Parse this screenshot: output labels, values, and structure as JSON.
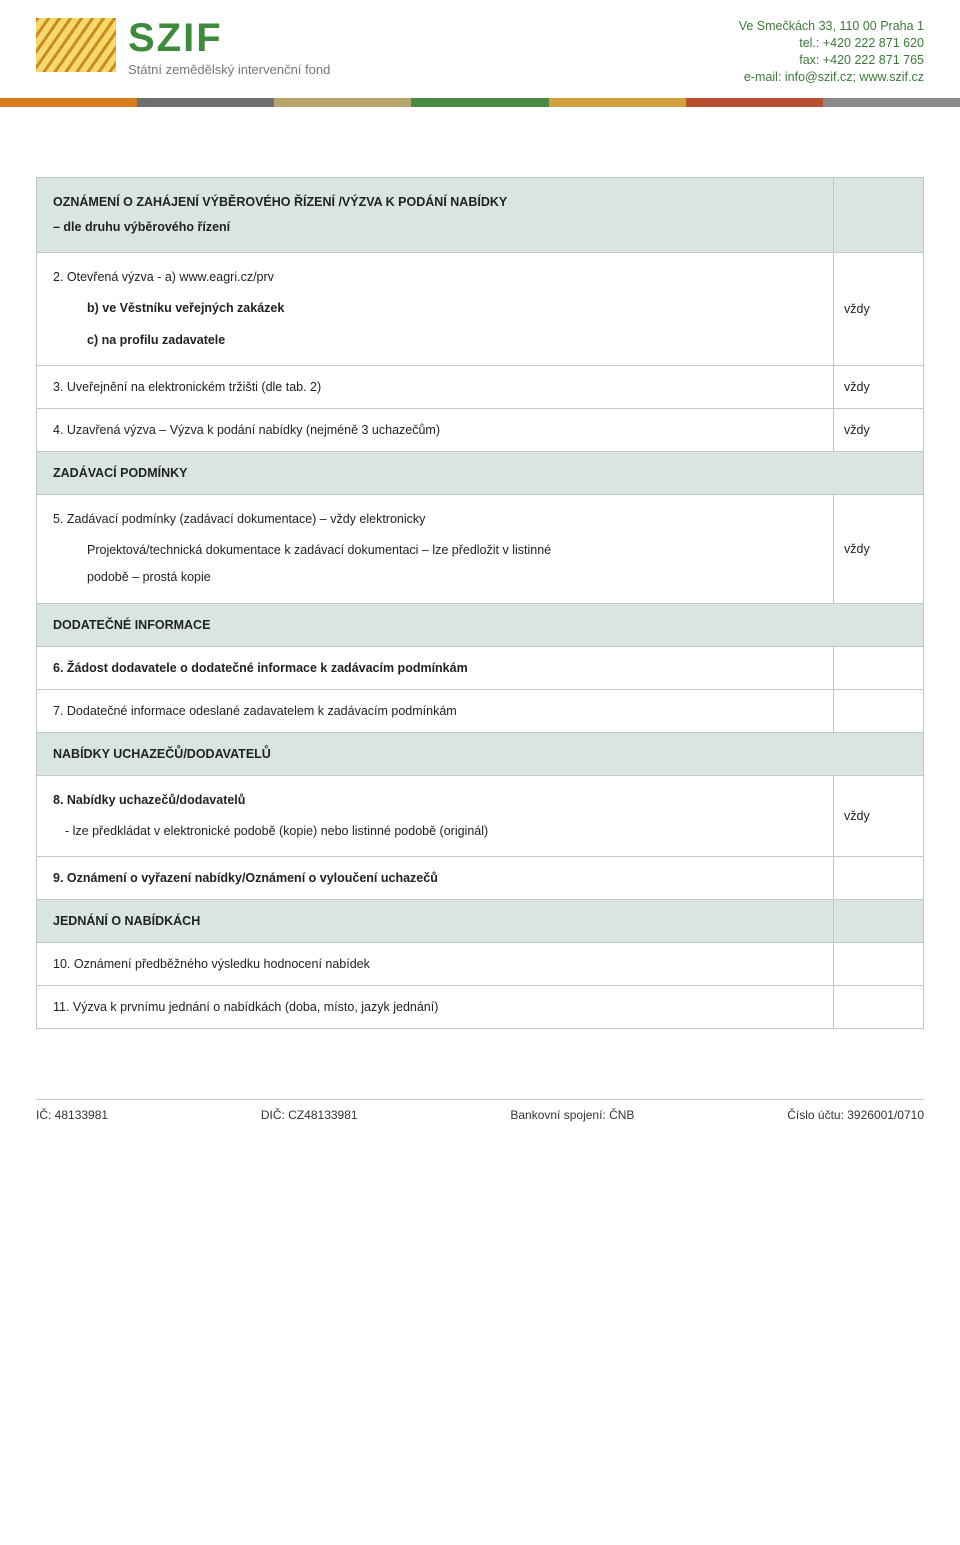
{
  "header": {
    "logo_name": "SZIF",
    "logo_sub": "Státní zemědělský intervenční fond",
    "contact": {
      "address": "Ve Smečkách 33, 110 00 Praha 1",
      "tel": "tel.: +420 222 871 620",
      "fax": "fax: +420 222 871 765",
      "email": "e-mail: info@szif.cz; www.szif.cz"
    }
  },
  "stripe_colors": [
    "#d77f1f",
    "#6f6f6f",
    "#b7a46a",
    "#4a8a42",
    "#d2a13e",
    "#b84e2f",
    "#8a8a8a"
  ],
  "sections": {
    "s1": {
      "title": "OZNÁMENÍ O ZAHÁJENÍ VÝBĚROVÉHO ŘÍZENÍ /VÝZVA K PODÁNÍ NABÍDKY",
      "subtitle": "– dle druhu výběrového řízení",
      "r2_main": "2. Otevřená výzva - a) www.eagri.cz/prv",
      "r2_b": "b) ve Věstníku veřejných zakázek",
      "r2_c": "c) na profilu zadavatele",
      "r2_val": "vždy",
      "r3_main": "3. Uveřejnění na elektronickém tržišti (dle tab. 2)",
      "r3_val": "vždy",
      "r4_main": "4. Uzavřená výzva – Výzva k podání nabídky (nejméně 3 uchazečům)",
      "r4_val": "vždy"
    },
    "s2": {
      "title": "ZADÁVACÍ PODMÍNKY",
      "r5_main": "5. Zadávací podmínky (zadávací dokumentace) – vždy elektronicky",
      "r5_sub1": "Projektová/technická dokumentace k zadávací dokumentaci – lze předložit v listinné",
      "r5_sub2": "podobě – prostá kopie",
      "r5_val": "vždy"
    },
    "s3": {
      "title": "DODATEČNÉ INFORMACE",
      "r6": "6. Žádost dodavatele o dodatečné informace k zadávacím podmínkám",
      "r7": "7. Dodatečné informace odeslané zadavatelem k zadávacím podmínkám"
    },
    "s4": {
      "title": "NABÍDKY UCHAZEČŮ/DODAVATELŮ",
      "r8_main": "8. Nabídky uchazečů/dodavatelů",
      "r8_sub": "- lze předkládat v elektronické podobě (kopie) nebo listinné podobě (originál)",
      "r8_val": "vždy",
      "r9": "9. Oznámení o vyřazení nabídky/Oznámení o vyloučení uchazečů"
    },
    "s5": {
      "title": "JEDNÁNÍ O NABÍDKÁCH",
      "r10": "10. Oznámení předběžného výsledku hodnocení nabídek",
      "r11": "11. Výzva k prvnímu jednání o nabídkách (doba, místo, jazyk jednání)"
    }
  },
  "footer": {
    "ic": "IČ: 48133981",
    "dic": "DIČ: CZ48133981",
    "bank": "Bankovní spojení: ČNB",
    "acct": "Číslo účtu: 3926001/0710"
  }
}
